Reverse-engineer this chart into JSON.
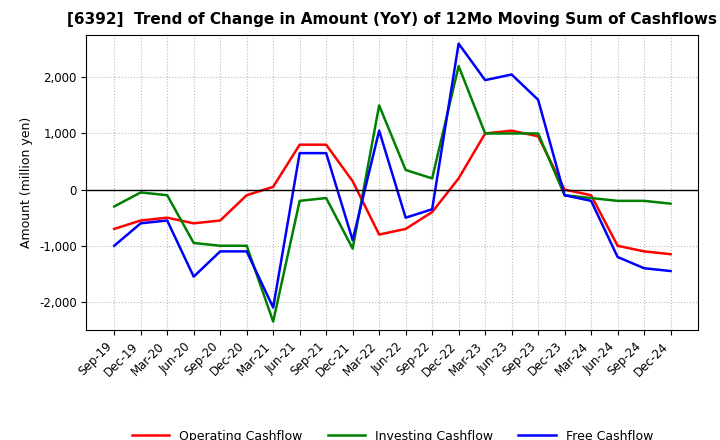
{
  "title": "[6392]  Trend of Change in Amount (YoY) of 12Mo Moving Sum of Cashflows",
  "ylabel": "Amount (million yen)",
  "x_labels": [
    "Sep-19",
    "Dec-19",
    "Mar-20",
    "Jun-20",
    "Sep-20",
    "Dec-20",
    "Mar-21",
    "Jun-21",
    "Sep-21",
    "Dec-21",
    "Mar-22",
    "Jun-22",
    "Sep-22",
    "Dec-22",
    "Mar-23",
    "Jun-23",
    "Sep-23",
    "Dec-23",
    "Mar-24",
    "Jun-24",
    "Sep-24",
    "Dec-24"
  ],
  "operating": [
    -700,
    -550,
    -500,
    -600,
    -550,
    -100,
    50,
    800,
    800,
    150,
    -800,
    -700,
    -400,
    200,
    1000,
    1050,
    950,
    0,
    -100,
    -1000,
    -1100,
    -1150
  ],
  "investing": [
    -300,
    -50,
    -100,
    -950,
    -1000,
    -1000,
    -2350,
    -200,
    -150,
    -1050,
    1500,
    350,
    200,
    2200,
    1000,
    1000,
    1000,
    -100,
    -150,
    -200,
    -200,
    -250
  ],
  "free": [
    -1000,
    -600,
    -550,
    -1550,
    -1100,
    -1100,
    -2100,
    650,
    650,
    -900,
    1050,
    -500,
    -350,
    2600,
    1950,
    2050,
    1600,
    -100,
    -200,
    -1200,
    -1400,
    -1450
  ],
  "operating_color": "#FF0000",
  "investing_color": "#008000",
  "free_color": "#0000FF",
  "ylim": [
    -2500,
    2750
  ],
  "yticks": [
    -2000,
    -1000,
    0,
    1000,
    2000
  ],
  "background_color": "#FFFFFF",
  "grid_color": "#BBBBBB",
  "title_fontsize": 11,
  "axis_fontsize": 8.5,
  "ylabel_fontsize": 9,
  "legend_fontsize": 9,
  "linewidth": 1.8
}
